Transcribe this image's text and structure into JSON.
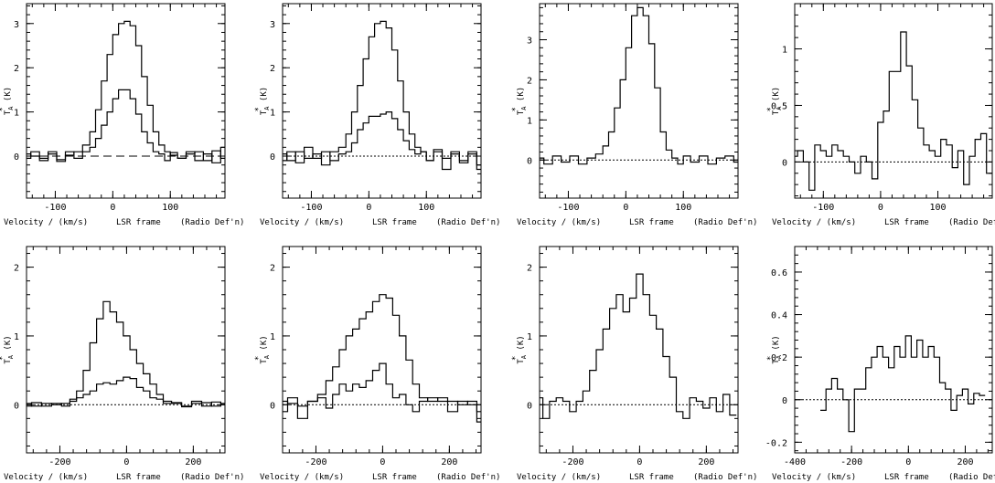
{
  "xlabel_parts": [
    "Velocity / (km/s)",
    "LSR frame",
    "(Radio Def'n)"
  ],
  "ylabel": "T",
  "ylabel_sub": "A",
  "ylabel_sup": "*",
  "ylabel_unit": "(K)",
  "chart_data": [
    {
      "type": "line",
      "xlim": [
        -150,
        195
      ],
      "ylim": [
        -0.95,
        3.45
      ],
      "xticks": [
        -100,
        0,
        100
      ],
      "yticks": [
        0,
        1,
        2,
        3
      ],
      "baseline": "dashed",
      "series": [
        {
          "x": [
            -150,
            -135,
            -120,
            -105,
            -90,
            -75,
            -60,
            -45,
            -35,
            -25,
            -15,
            -5,
            5,
            15,
            25,
            35,
            45,
            55,
            65,
            75,
            85,
            95,
            105,
            120,
            135,
            150,
            165,
            180,
            195
          ],
          "y": [
            0.05,
            0,
            -0.05,
            0.1,
            -0.08,
            0.02,
            0.1,
            0.25,
            0.55,
            1.05,
            1.7,
            2.3,
            2.75,
            3.0,
            3.05,
            2.95,
            2.5,
            1.8,
            1.15,
            0.55,
            0.25,
            0.1,
            0.02,
            -0.05,
            0.05,
            0.1,
            -0.1,
            0.12,
            -0.05
          ]
        },
        {
          "x": [
            -150,
            -135,
            -120,
            -105,
            -90,
            -75,
            -60,
            -45,
            -35,
            -25,
            -15,
            -5,
            5,
            15,
            25,
            35,
            45,
            55,
            65,
            75,
            85,
            95,
            105,
            120,
            135,
            150,
            165,
            180,
            195
          ],
          "y": [
            -0.05,
            0.1,
            -0.1,
            0.05,
            -0.12,
            0.1,
            -0.05,
            0.1,
            0.2,
            0.4,
            0.7,
            1.0,
            1.3,
            1.5,
            1.5,
            1.3,
            0.95,
            0.55,
            0.3,
            0.1,
            0.05,
            -0.1,
            0.08,
            -0.05,
            0.1,
            -0.1,
            0.05,
            -0.15,
            0.2
          ]
        }
      ]
    },
    {
      "type": "line",
      "xlim": [
        -150,
        195
      ],
      "ylim": [
        -0.95,
        3.45
      ],
      "xticks": [
        -100,
        0,
        100
      ],
      "yticks": [
        0,
        1,
        2,
        3
      ],
      "baseline": "dotted",
      "series": [
        {
          "x": [
            -150,
            -135,
            -120,
            -105,
            -90,
            -75,
            -60,
            -45,
            -35,
            -25,
            -15,
            -5,
            5,
            15,
            25,
            35,
            45,
            55,
            65,
            75,
            85,
            95,
            105,
            120,
            135,
            150,
            165,
            180,
            195
          ],
          "y": [
            0.05,
            -0.1,
            0.1,
            -0.05,
            0.05,
            -0.2,
            0.1,
            0.2,
            0.5,
            1.0,
            1.6,
            2.2,
            2.7,
            3.0,
            3.05,
            2.9,
            2.4,
            1.7,
            1.0,
            0.5,
            0.2,
            0.1,
            -0.1,
            0.1,
            -0.05,
            0.05,
            -0.1,
            0.1,
            -0.2
          ]
        },
        {
          "x": [
            -150,
            -135,
            -120,
            -105,
            -90,
            -75,
            -60,
            -45,
            -35,
            -25,
            -15,
            -5,
            5,
            15,
            25,
            35,
            45,
            55,
            65,
            75,
            85,
            95,
            105,
            120,
            135,
            150,
            165,
            180,
            195
          ],
          "y": [
            -0.1,
            0.1,
            -0.15,
            0.2,
            -0.05,
            0.1,
            -0.1,
            0.05,
            0.1,
            0.3,
            0.6,
            0.75,
            0.9,
            0.9,
            0.95,
            1.0,
            0.85,
            0.6,
            0.35,
            0.15,
            0.05,
            0.1,
            -0.1,
            0.15,
            -0.3,
            0.1,
            -0.15,
            0.05,
            -0.3
          ]
        }
      ]
    },
    {
      "type": "line",
      "xlim": [
        -150,
        195
      ],
      "ylim": [
        -0.95,
        3.9
      ],
      "xticks": [
        -100,
        0,
        100
      ],
      "yticks": [
        0,
        1,
        2,
        3
      ],
      "baseline": "dotted",
      "series": [
        {
          "x": [
            -150,
            -135,
            -120,
            -105,
            -90,
            -75,
            -60,
            -45,
            -35,
            -25,
            -15,
            -5,
            5,
            15,
            25,
            35,
            45,
            55,
            65,
            75,
            85,
            95,
            105,
            120,
            135,
            150,
            165,
            180,
            195
          ],
          "y": [
            0.05,
            -0.1,
            0.1,
            -0.05,
            0.1,
            -0.1,
            0.05,
            0.15,
            0.35,
            0.7,
            1.3,
            2.0,
            2.8,
            3.6,
            3.8,
            3.6,
            2.9,
            1.8,
            0.7,
            0.25,
            0.05,
            -0.1,
            0.1,
            -0.05,
            0.1,
            -0.1,
            0.05,
            0.1,
            -0.05
          ]
        }
      ]
    },
    {
      "type": "line",
      "xlim": [
        -150,
        195
      ],
      "ylim": [
        -0.32,
        1.4
      ],
      "xticks": [
        -100,
        0,
        100
      ],
      "yticks": [
        0,
        0.5,
        1
      ],
      "baseline": "dotted",
      "series": [
        {
          "x": [
            -150,
            -140,
            -130,
            -120,
            -110,
            -100,
            -90,
            -80,
            -70,
            -60,
            -50,
            -40,
            -30,
            -20,
            -10,
            0,
            10,
            20,
            30,
            40,
            50,
            60,
            70,
            80,
            90,
            100,
            110,
            120,
            130,
            140,
            150,
            160,
            170,
            180,
            190
          ],
          "y": [
            0.05,
            0.1,
            0,
            -0.25,
            0.15,
            0.1,
            0.05,
            0.15,
            0.1,
            0.05,
            0,
            -0.1,
            0.05,
            0,
            -0.15,
            0.35,
            0.45,
            0.8,
            0.8,
            1.15,
            0.85,
            0.55,
            0.3,
            0.15,
            0.1,
            0.05,
            0.2,
            0.15,
            -0.05,
            0.1,
            -0.2,
            0.05,
            0.2,
            0.25,
            -0.1
          ]
        }
      ]
    },
    {
      "type": "line",
      "xlim": [
        -300,
        295
      ],
      "ylim": [
        -0.7,
        2.3
      ],
      "xticks": [
        -200,
        0,
        200
      ],
      "yticks": [
        0,
        1,
        2
      ],
      "baseline": "dotted",
      "series": [
        {
          "x": [
            -300,
            -270,
            -240,
            -210,
            -180,
            -160,
            -140,
            -120,
            -100,
            -80,
            -60,
            -40,
            -20,
            0,
            20,
            40,
            60,
            80,
            100,
            120,
            150,
            180,
            210,
            240,
            270,
            295
          ],
          "y": [
            0.02,
            -0.02,
            0.02,
            0,
            0.02,
            0.08,
            0.2,
            0.5,
            0.9,
            1.25,
            1.5,
            1.35,
            1.2,
            1.0,
            0.8,
            0.6,
            0.45,
            0.3,
            0.15,
            0.05,
            0.02,
            -0.02,
            0.02,
            0.03,
            -0.02,
            0.02
          ]
        },
        {
          "x": [
            -300,
            -270,
            -240,
            -210,
            -180,
            -160,
            -140,
            -120,
            -100,
            -80,
            -60,
            -40,
            -20,
            0,
            20,
            40,
            60,
            80,
            100,
            120,
            150,
            180,
            210,
            240,
            270,
            295
          ],
          "y": [
            -0.02,
            0.03,
            -0.02,
            0.02,
            -0.02,
            0.05,
            0.1,
            0.15,
            0.2,
            0.3,
            0.32,
            0.3,
            0.35,
            0.4,
            0.38,
            0.25,
            0.2,
            0.1,
            0.08,
            0.02,
            0.03,
            -0.03,
            0.05,
            -0.02,
            0.04,
            0
          ]
        }
      ]
    },
    {
      "type": "line",
      "xlim": [
        -300,
        295
      ],
      "ylim": [
        -0.7,
        2.3
      ],
      "xticks": [
        -200,
        0,
        200
      ],
      "yticks": [
        0,
        1,
        2
      ],
      "baseline": "dotted",
      "series": [
        {
          "x": [
            -300,
            -270,
            -240,
            -210,
            -180,
            -160,
            -140,
            -120,
            -100,
            -80,
            -60,
            -40,
            -20,
            0,
            20,
            40,
            60,
            80,
            100,
            120,
            150,
            180,
            210,
            240,
            270,
            295
          ],
          "y": [
            0.05,
            0.02,
            -0.02,
            0.05,
            0.15,
            0.35,
            0.55,
            0.8,
            1.0,
            1.1,
            1.25,
            1.35,
            1.5,
            1.6,
            1.55,
            1.3,
            1.0,
            0.65,
            0.3,
            0.1,
            0.05,
            0.1,
            0.05,
            0,
            0.05,
            -0.1
          ]
        },
        {
          "x": [
            -300,
            -270,
            -240,
            -210,
            -180,
            -160,
            -140,
            -120,
            -100,
            -80,
            -60,
            -40,
            -20,
            0,
            20,
            40,
            60,
            80,
            100,
            120,
            150,
            180,
            210,
            240,
            270,
            295
          ],
          "y": [
            -0.1,
            0.1,
            -0.2,
            0.05,
            0.1,
            -0.05,
            0.15,
            0.3,
            0.2,
            0.3,
            0.25,
            0.35,
            0.5,
            0.6,
            0.3,
            0.1,
            0.15,
            0,
            -0.1,
            0.05,
            0.1,
            0.05,
            -0.1,
            0.05,
            0,
            -0.25
          ]
        }
      ]
    },
    {
      "type": "line",
      "xlim": [
        -300,
        295
      ],
      "ylim": [
        -0.7,
        2.3
      ],
      "xticks": [
        -200,
        0,
        200
      ],
      "yticks": [
        0,
        1,
        2
      ],
      "baseline": "dotted",
      "series": [
        {
          "x": [
            -300,
            -280,
            -260,
            -240,
            -220,
            -200,
            -180,
            -160,
            -140,
            -120,
            -100,
            -80,
            -60,
            -40,
            -20,
            0,
            20,
            40,
            60,
            80,
            100,
            120,
            140,
            160,
            180,
            200,
            220,
            240,
            260,
            280
          ],
          "y": [
            0.1,
            -0.2,
            0.05,
            0.1,
            0.05,
            -0.1,
            0.05,
            0.2,
            0.5,
            0.8,
            1.1,
            1.4,
            1.6,
            1.35,
            1.55,
            1.9,
            1.6,
            1.3,
            1.1,
            0.7,
            0.4,
            -0.1,
            -0.2,
            0.1,
            0.05,
            -0.05,
            0.1,
            -0.1,
            0.15,
            -0.15
          ]
        }
      ]
    },
    {
      "type": "line",
      "xlim": [
        -400,
        295
      ],
      "ylim": [
        -0.25,
        0.72
      ],
      "xticks": [
        -400,
        -200,
        0,
        200
      ],
      "yticks": [
        -0.2,
        0,
        0.2,
        0.4,
        0.6
      ],
      "baseline": "dotted",
      "series": [
        {
          "x": [
            -300,
            -280,
            -260,
            -240,
            -220,
            -200,
            -180,
            -160,
            -140,
            -120,
            -100,
            -80,
            -60,
            -40,
            -20,
            0,
            20,
            40,
            60,
            80,
            100,
            120,
            140,
            160,
            180,
            200,
            220,
            240,
            260
          ],
          "y": [
            -0.05,
            0.05,
            0.1,
            0.05,
            0,
            -0.15,
            0.05,
            0.05,
            0.15,
            0.2,
            0.25,
            0.2,
            0.15,
            0.25,
            0.2,
            0.3,
            0.2,
            0.28,
            0.2,
            0.25,
            0.2,
            0.08,
            0.05,
            -0.05,
            0.02,
            0.05,
            -0.02,
            0.03,
            0.02
          ]
        }
      ]
    }
  ]
}
